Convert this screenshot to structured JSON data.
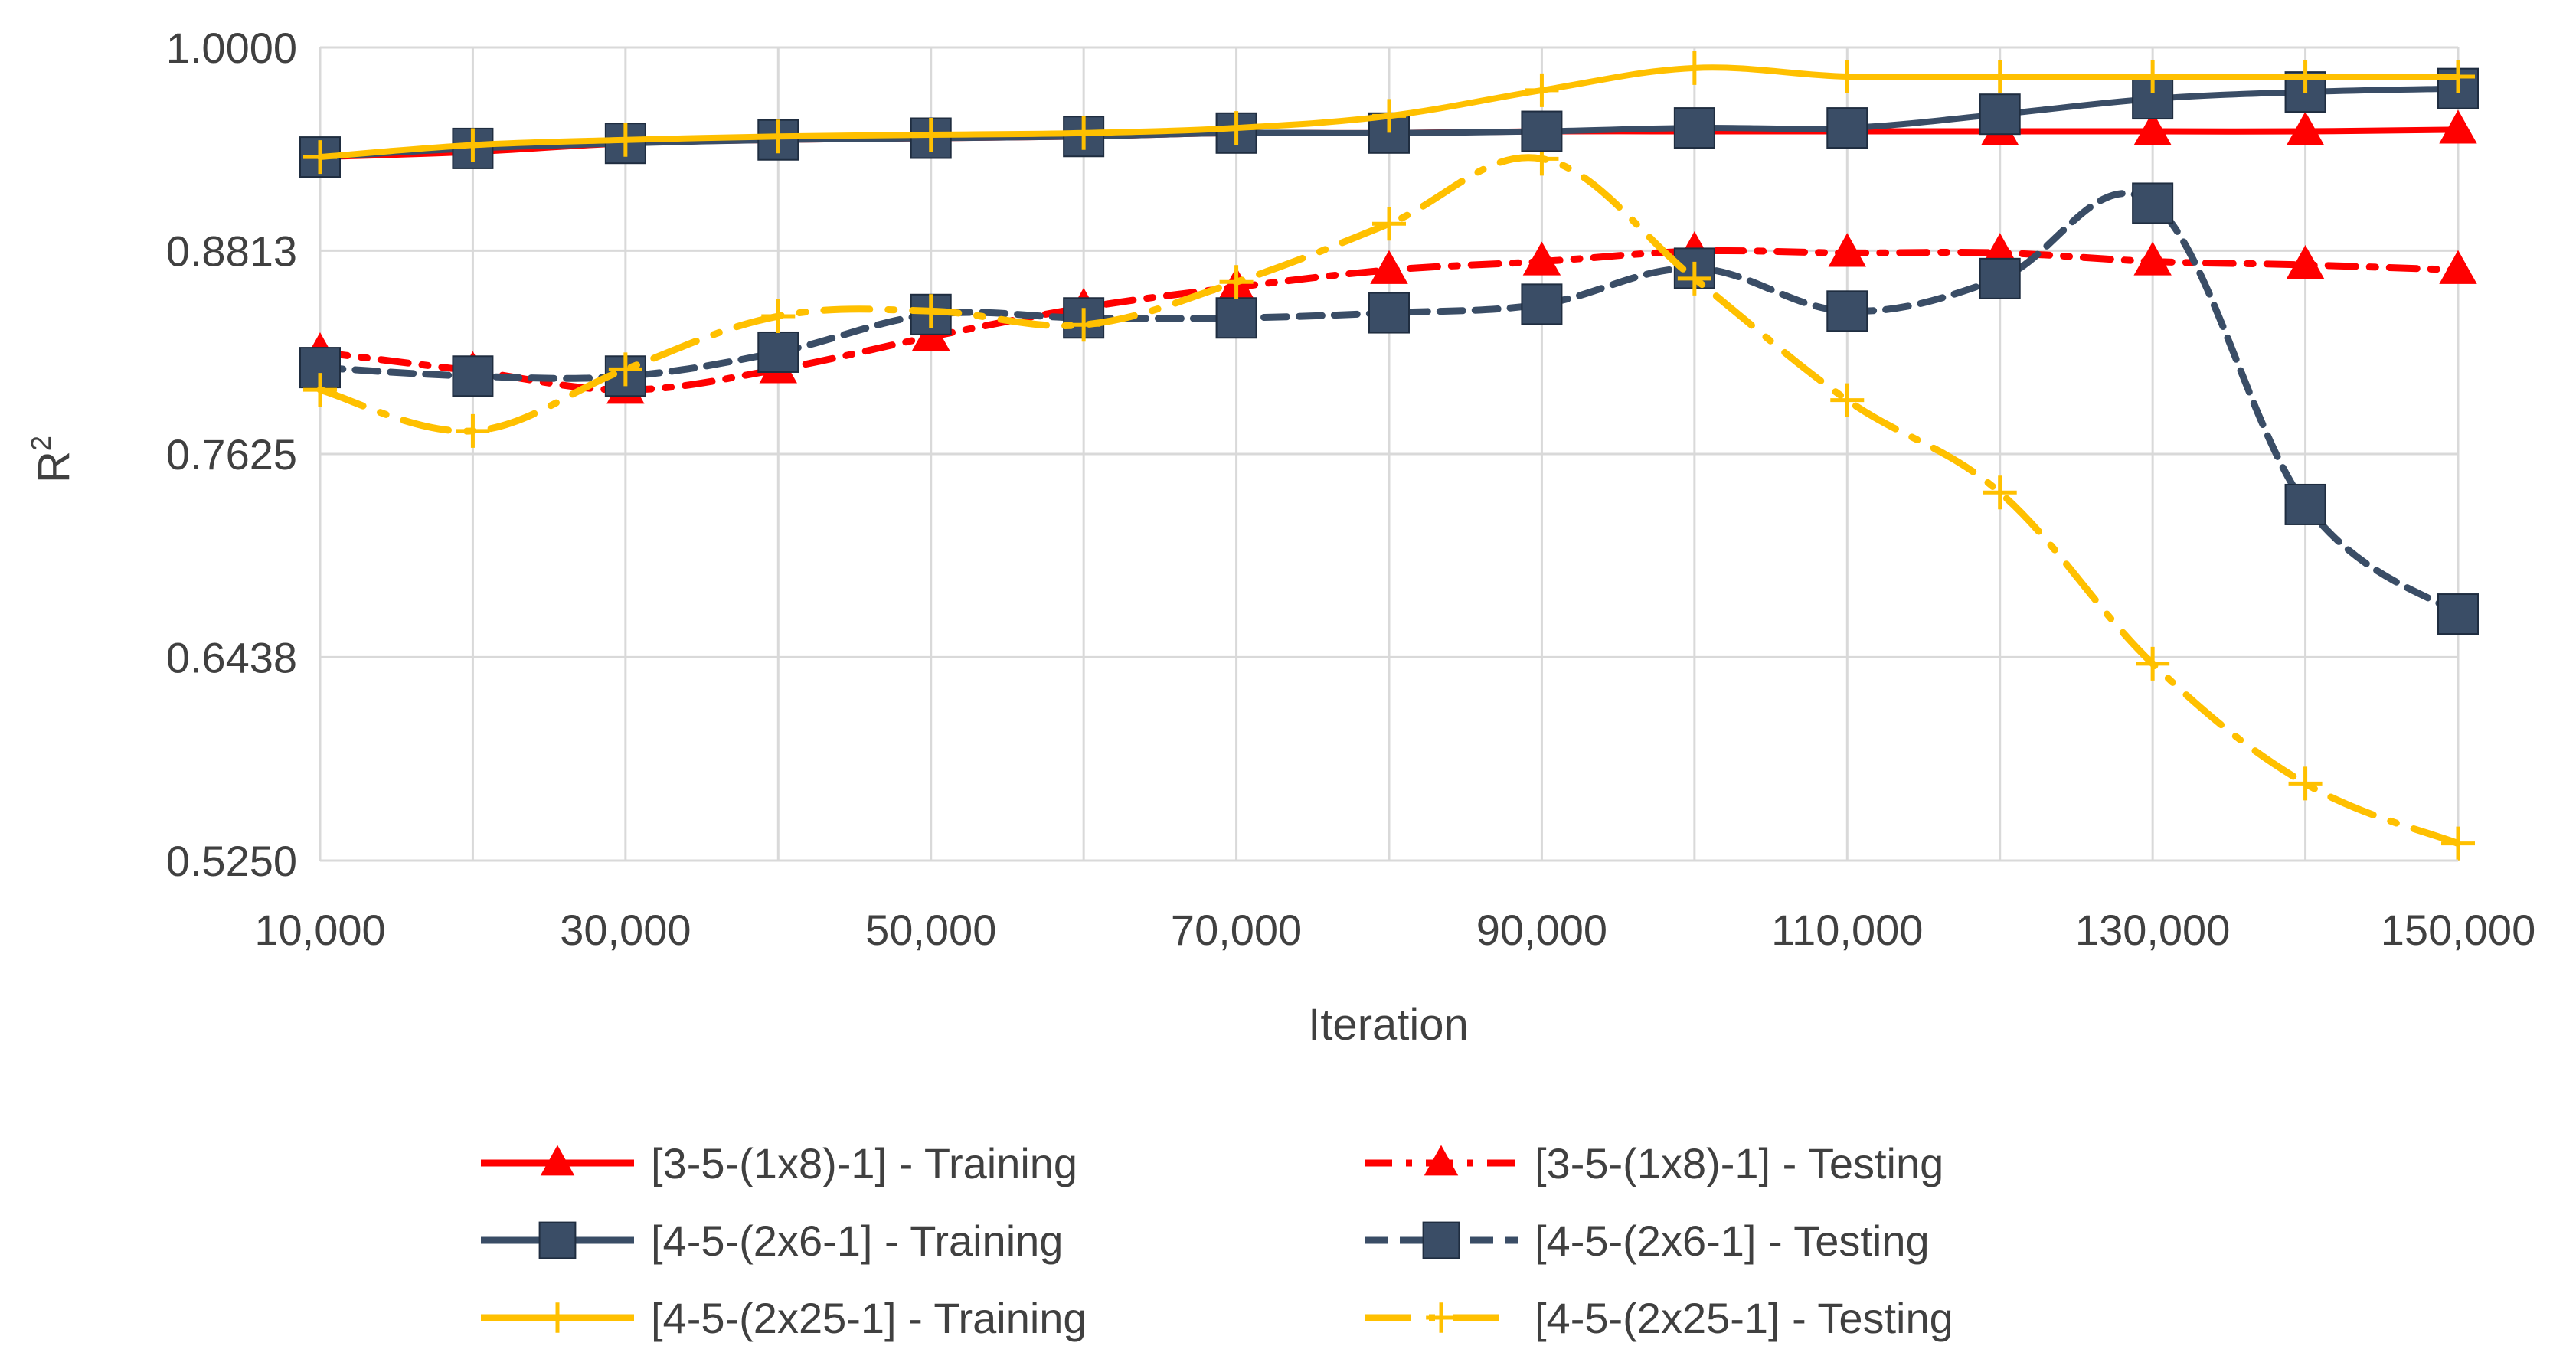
{
  "chart_data": {
    "type": "line",
    "title": "",
    "xlabel": "Iteration",
    "ylabel": "R",
    "ylabel_sup": "2",
    "xlim": [
      10000,
      150000
    ],
    "ylim": [
      0.525,
      1.0
    ],
    "x_ticks": [
      "10,000",
      "30,000",
      "50,000",
      "70,000",
      "90,000",
      "110,000",
      "130,000",
      "150,000"
    ],
    "y_ticks": [
      "0.5250",
      "0.6438",
      "0.7625",
      "0.8813",
      "1.0000"
    ],
    "grid": true,
    "legend_position": "bottom",
    "x": [
      10000,
      20000,
      30000,
      40000,
      50000,
      60000,
      70000,
      80000,
      90000,
      100000,
      110000,
      120000,
      130000,
      140000,
      150000
    ],
    "series": [
      {
        "name": "[3-5-(1x8)-1] - Training",
        "color": "#ff0000",
        "style": "solid",
        "marker": "triangle",
        "values": [
          0.936,
          0.939,
          0.944,
          0.946,
          0.947,
          0.948,
          0.95,
          0.95,
          0.951,
          0.951,
          0.951,
          0.951,
          0.951,
          0.951,
          0.952
        ]
      },
      {
        "name": "[3-5-(1x8)-1] - Testing",
        "color": "#ff0000",
        "style": "dashdot",
        "marker": "triangle",
        "values": [
          0.822,
          0.811,
          0.8,
          0.812,
          0.831,
          0.848,
          0.86,
          0.87,
          0.875,
          0.881,
          0.88,
          0.88,
          0.875,
          0.873,
          0.87
        ]
      },
      {
        "name": "[4-5-(2x6-1] - Training",
        "color": "#3a4d66",
        "style": "solid",
        "marker": "square",
        "values": [
          0.936,
          0.941,
          0.944,
          0.946,
          0.947,
          0.948,
          0.95,
          0.95,
          0.951,
          0.953,
          0.953,
          0.961,
          0.97,
          0.974,
          0.976
        ]
      },
      {
        "name": "[4-5-(2x6-1] - Testing",
        "color": "#3a4d66",
        "style": "dashed",
        "marker": "square",
        "values": [
          0.813,
          0.808,
          0.808,
          0.822,
          0.844,
          0.842,
          0.842,
          0.845,
          0.85,
          0.871,
          0.846,
          0.865,
          0.909,
          0.733,
          0.669
        ]
      },
      {
        "name": "[4-5-(2x25-1] - Training",
        "color": "#ffc000",
        "style": "solid",
        "marker": "plus",
        "values": [
          0.936,
          0.943,
          0.946,
          0.948,
          0.949,
          0.95,
          0.953,
          0.96,
          0.975,
          0.988,
          0.983,
          0.983,
          0.983,
          0.983,
          0.983
        ]
      },
      {
        "name": "[4-5-(2x25-1] - Testing",
        "color": "#ffc000",
        "style": "longdashdot",
        "marker": "plus",
        "values": [
          0.8,
          0.776,
          0.812,
          0.843,
          0.846,
          0.838,
          0.863,
          0.897,
          0.935,
          0.865,
          0.794,
          0.74,
          0.64,
          0.57,
          0.535
        ]
      }
    ]
  }
}
